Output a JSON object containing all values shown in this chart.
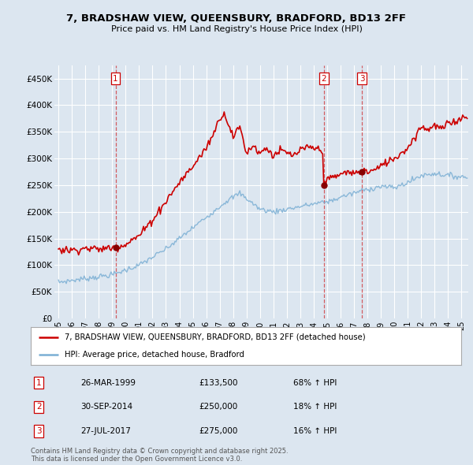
{
  "title": "7, BRADSHAW VIEW, QUEENSBURY, BRADFORD, BD13 2FF",
  "subtitle": "Price paid vs. HM Land Registry's House Price Index (HPI)",
  "bg_color": "#dce6f0",
  "red_line_color": "#cc0000",
  "blue_line_color": "#7bafd4",
  "ylim": [
    0,
    475000
  ],
  "yticks": [
    0,
    50000,
    100000,
    150000,
    200000,
    250000,
    300000,
    350000,
    400000,
    450000
  ],
  "ytick_labels": [
    "£0",
    "£50K",
    "£100K",
    "£150K",
    "£200K",
    "£250K",
    "£300K",
    "£350K",
    "£400K",
    "£450K"
  ],
  "sale_prices": [
    133500,
    250000,
    275000
  ],
  "sale_labels": [
    "1",
    "2",
    "3"
  ],
  "sale_year_nums": [
    1999.25,
    2014.75,
    2017.58
  ],
  "sale_annotations": [
    [
      "26-MAR-1999",
      "£133,500",
      "68% ↑ HPI"
    ],
    [
      "30-SEP-2014",
      "£250,000",
      "18% ↑ HPI"
    ],
    [
      "27-JUL-2017",
      "£275,000",
      "16% ↑ HPI"
    ]
  ],
  "legend_label_red": "7, BRADSHAW VIEW, QUEENSBURY, BRADFORD, BD13 2FF (detached house)",
  "legend_label_blue": "HPI: Average price, detached house, Bradford",
  "footer": "Contains HM Land Registry data © Crown copyright and database right 2025.\nThis data is licensed under the Open Government Licence v3.0.",
  "xlim_start": 1995.0,
  "xlim_end": 2025.5
}
